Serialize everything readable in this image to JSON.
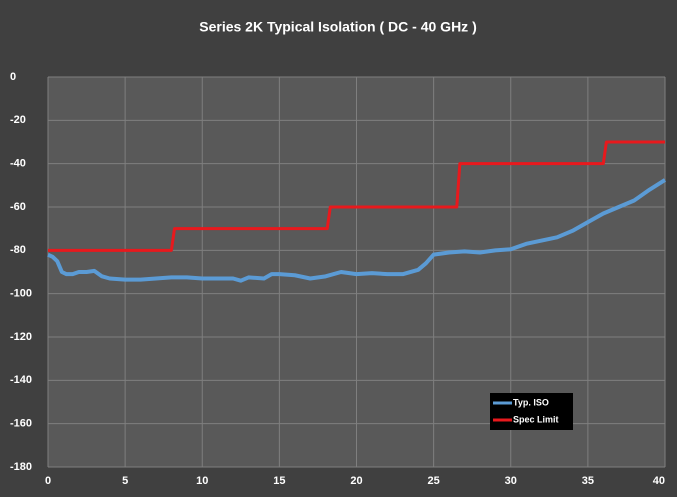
{
  "chart_data": {
    "type": "line",
    "title": "Series 2K Typical Isolation ( DC - 40 GHz )",
    "xlim": [
      0,
      40
    ],
    "xticks": [
      0,
      5,
      10,
      15,
      20,
      25,
      30,
      35,
      40
    ],
    "ylim": [
      -180,
      0
    ],
    "yticks": [
      0,
      -20,
      -40,
      -60,
      -80,
      -100,
      -120,
      -140,
      -160,
      -180
    ],
    "grid": true,
    "legend": "lower-right",
    "series": [
      {
        "name": "Typ. ISO",
        "color": "#5b9bd5",
        "x": [
          0,
          0.3,
          0.6,
          0.9,
          1.2,
          1.6,
          2,
          2.5,
          3,
          3.5,
          4,
          5,
          6,
          7,
          8,
          9,
          10,
          11,
          12,
          12.5,
          13,
          14,
          14.5,
          15,
          16,
          17,
          18,
          19,
          20,
          21,
          22,
          23,
          24,
          24.5,
          25,
          26,
          27,
          28,
          29,
          30,
          31,
          32,
          33,
          34,
          35,
          36,
          37,
          38,
          39,
          40
        ],
        "values": [
          -82,
          -83,
          -85,
          -90,
          -91,
          -91,
          -90,
          -90,
          -89.5,
          -92,
          -93,
          -93.5,
          -93.5,
          -93,
          -92.5,
          -92.5,
          -93,
          -93,
          -93,
          -94,
          -92.5,
          -93,
          -91,
          -91,
          -91.5,
          -93,
          -92,
          -90,
          -91,
          -90.5,
          -91,
          -91,
          -89,
          -86,
          -82,
          -81,
          -80.5,
          -81,
          -80,
          -79.5,
          -77,
          -75.5,
          -74,
          -71,
          -67,
          -63,
          -60,
          -57,
          -52,
          -47.5
        ]
      },
      {
        "name": "Spec Limit",
        "color": "#e8191d",
        "x": [
          0,
          8,
          8.2,
          18.1,
          18.3,
          26.5,
          26.7,
          36,
          36.2,
          40
        ],
        "values": [
          -80,
          -80,
          -70,
          -70,
          -60,
          -60,
          -40,
          -40,
          -30,
          -30
        ]
      }
    ]
  }
}
